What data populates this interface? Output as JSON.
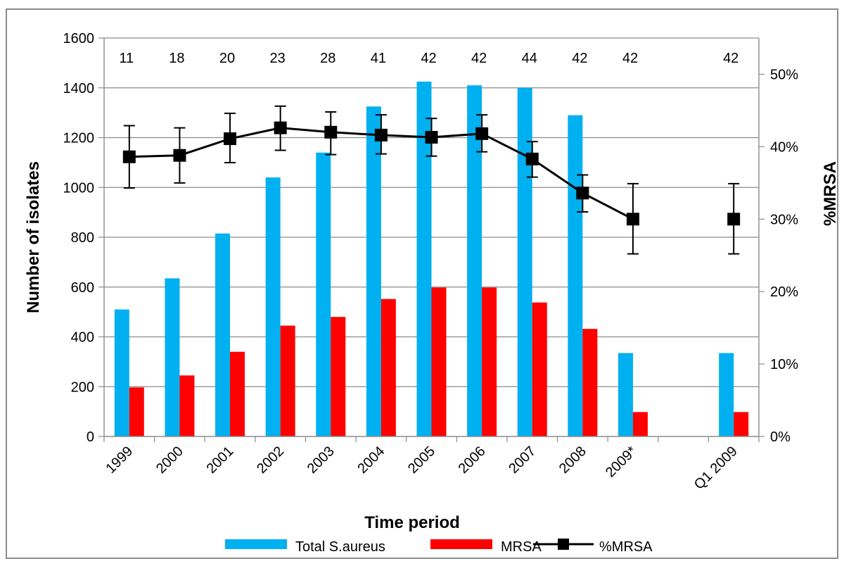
{
  "chart_data": {
    "type": "bar",
    "categories": [
      "1999",
      "2000",
      "2001",
      "2002",
      "2003",
      "2004",
      "2005",
      "2006",
      "2007",
      "2008",
      "2009*",
      "",
      "Q1 2009"
    ],
    "series": [
      {
        "name": "Total S.aureus",
        "kind": "bar",
        "axis": "left",
        "color": "#00b0f0",
        "values": [
          510,
          635,
          815,
          1040,
          1140,
          1325,
          1425,
          1410,
          1400,
          1290,
          335,
          null,
          335
        ]
      },
      {
        "name": "MRSA",
        "kind": "bar",
        "axis": "left",
        "color": "#ff0000",
        "values": [
          197,
          245,
          340,
          445,
          480,
          552,
          598,
          598,
          538,
          432,
          98,
          null,
          98
        ]
      },
      {
        "name": "%MRSA",
        "kind": "line",
        "axis": "right",
        "color": "#000000",
        "marker": "square",
        "values": [
          38.6,
          38.8,
          41.1,
          42.6,
          42.0,
          41.6,
          41.3,
          41.8,
          38.3,
          33.6,
          30.0,
          null,
          30.0
        ],
        "error_low": [
          34.3,
          35.0,
          37.8,
          39.5,
          38.9,
          39.0,
          38.7,
          39.3,
          35.8,
          31.0,
          25.2,
          null,
          25.2
        ],
        "error_high": [
          42.9,
          42.6,
          44.6,
          45.6,
          44.8,
          44.4,
          43.9,
          44.4,
          40.7,
          36.1,
          34.9,
          null,
          34.9
        ]
      }
    ],
    "counts": [
      "11",
      "18",
      "20",
      "23",
      "28",
      "41",
      "42",
      "42",
      "44",
      "42",
      "42",
      "",
      "42"
    ],
    "xlabel": "Time period",
    "ylabel": "Number of isolates",
    "ylabel_right": "%MRSA",
    "ylim": [
      0,
      1600
    ],
    "ylim_right": [
      0,
      55
    ],
    "yticks": [
      "0",
      "200",
      "400",
      "600",
      "800",
      "1000",
      "1200",
      "1400",
      "1600"
    ],
    "yticks_right": [
      "0%",
      "10%",
      "20%",
      "30%",
      "40%",
      "50%"
    ],
    "grid": true,
    "legend_position": "bottom"
  }
}
